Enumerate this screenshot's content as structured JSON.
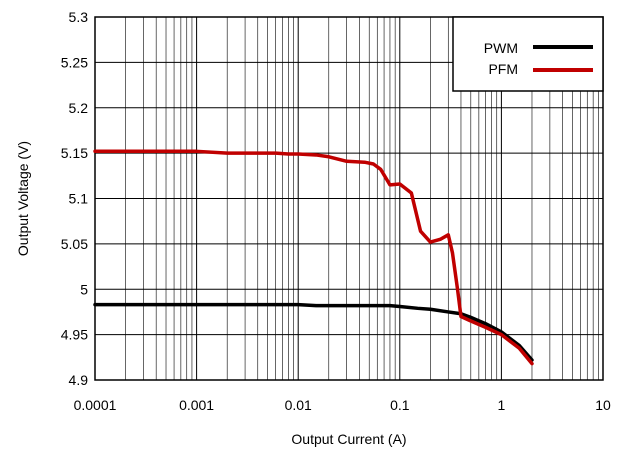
{
  "chart_data": {
    "type": "line",
    "xlabel": "Output Current (A)",
    "ylabel": "Output Voltage (V)",
    "xscale": "log",
    "xlim": [
      0.0001,
      10
    ],
    "ylim": [
      4.9,
      5.3
    ],
    "x_ticks": [
      "0.0001",
      "0.001",
      "0.01",
      "0.1",
      "1",
      "10"
    ],
    "y_ticks": [
      "4.9",
      "4.95",
      "5",
      "5.05",
      "5.1",
      "5.15",
      "5.2",
      "5.25",
      "5.3"
    ],
    "grid": true,
    "legend_position": "top-right",
    "series": [
      {
        "name": "PWM",
        "color": "#000000",
        "x": [
          0.0001,
          0.0003,
          0.001,
          0.003,
          0.01,
          0.015,
          0.03,
          0.06,
          0.08,
          0.1,
          0.15,
          0.2,
          0.3,
          0.4,
          0.5,
          0.7,
          1.0,
          1.5,
          2.0
        ],
        "y": [
          4.983,
          4.983,
          4.983,
          4.983,
          4.983,
          4.982,
          4.982,
          4.982,
          4.982,
          4.981,
          4.979,
          4.978,
          4.975,
          4.973,
          4.969,
          4.962,
          4.953,
          4.938,
          4.922
        ]
      },
      {
        "name": "PFM",
        "color": "#c00000",
        "x": [
          0.0001,
          0.0003,
          0.001,
          0.002,
          0.003,
          0.006,
          0.008,
          0.01,
          0.015,
          0.02,
          0.03,
          0.045,
          0.055,
          0.065,
          0.08,
          0.1,
          0.13,
          0.16,
          0.2,
          0.25,
          0.3,
          0.33,
          0.37,
          0.4,
          0.5,
          0.7,
          1.0,
          1.5,
          2.0
        ],
        "y": [
          5.152,
          5.152,
          5.152,
          5.15,
          5.15,
          5.15,
          5.149,
          5.149,
          5.148,
          5.146,
          5.141,
          5.14,
          5.138,
          5.132,
          5.115,
          5.116,
          5.106,
          5.064,
          5.052,
          5.055,
          5.06,
          5.04,
          5.0,
          4.97,
          4.965,
          4.958,
          4.95,
          4.935,
          4.918
        ]
      }
    ]
  }
}
